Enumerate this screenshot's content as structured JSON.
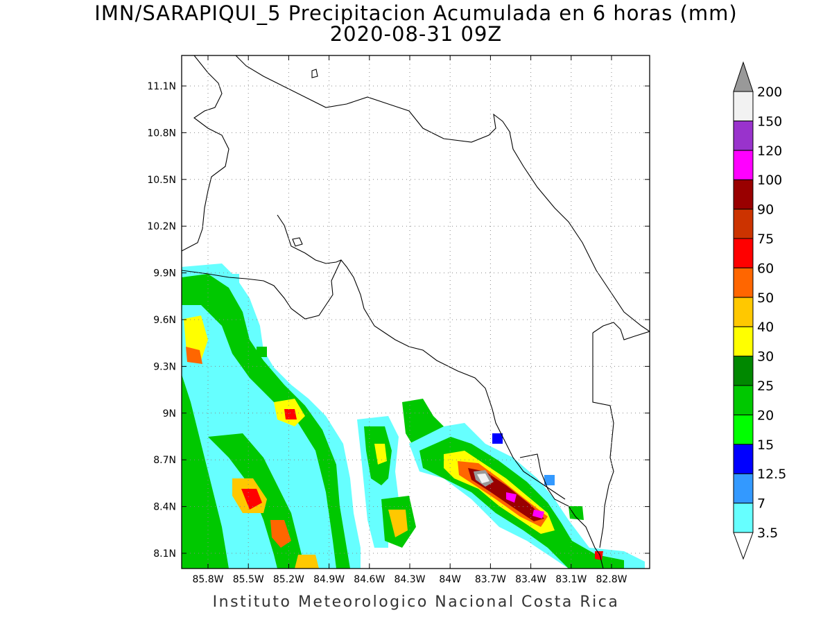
{
  "title": {
    "line1": "IMN/SARAPIQUI_5 Precipitacion Acumulada en 6 horas (mm)",
    "line2": "2020-08-31 09Z"
  },
  "footer": "Instituto Meteorologico Nacional Costa Rica",
  "map": {
    "lat_ticks": [
      "11.1N",
      "10.8N",
      "10.5N",
      "10.2N",
      "9.9N",
      "9.6N",
      "9.3N",
      "9N",
      "8.7N",
      "8.4N",
      "8.1N"
    ],
    "lon_ticks": [
      "85.8W",
      "85.5W",
      "85.2W",
      "84.9W",
      "84.6W",
      "84.3W",
      "84W",
      "83.7W",
      "83.4W",
      "83.1W",
      "82.8W"
    ],
    "grid": true
  },
  "colorbar": {
    "levels": [
      "3.5",
      "7",
      "12.5",
      "15",
      "20",
      "25",
      "30",
      "40",
      "50",
      "60",
      "75",
      "90",
      "100",
      "120",
      "150",
      "200"
    ],
    "colors": [
      "#ffffff",
      "#66ffff",
      "#3399ff",
      "#0000ff",
      "#00ff00",
      "#00c800",
      "#008800",
      "#ffff00",
      "#ffc800",
      "#ff6600",
      "#ff0000",
      "#cc3300",
      "#990000",
      "#ff00ff",
      "#9933cc",
      "#f2f2f2",
      "#999999"
    ]
  }
}
